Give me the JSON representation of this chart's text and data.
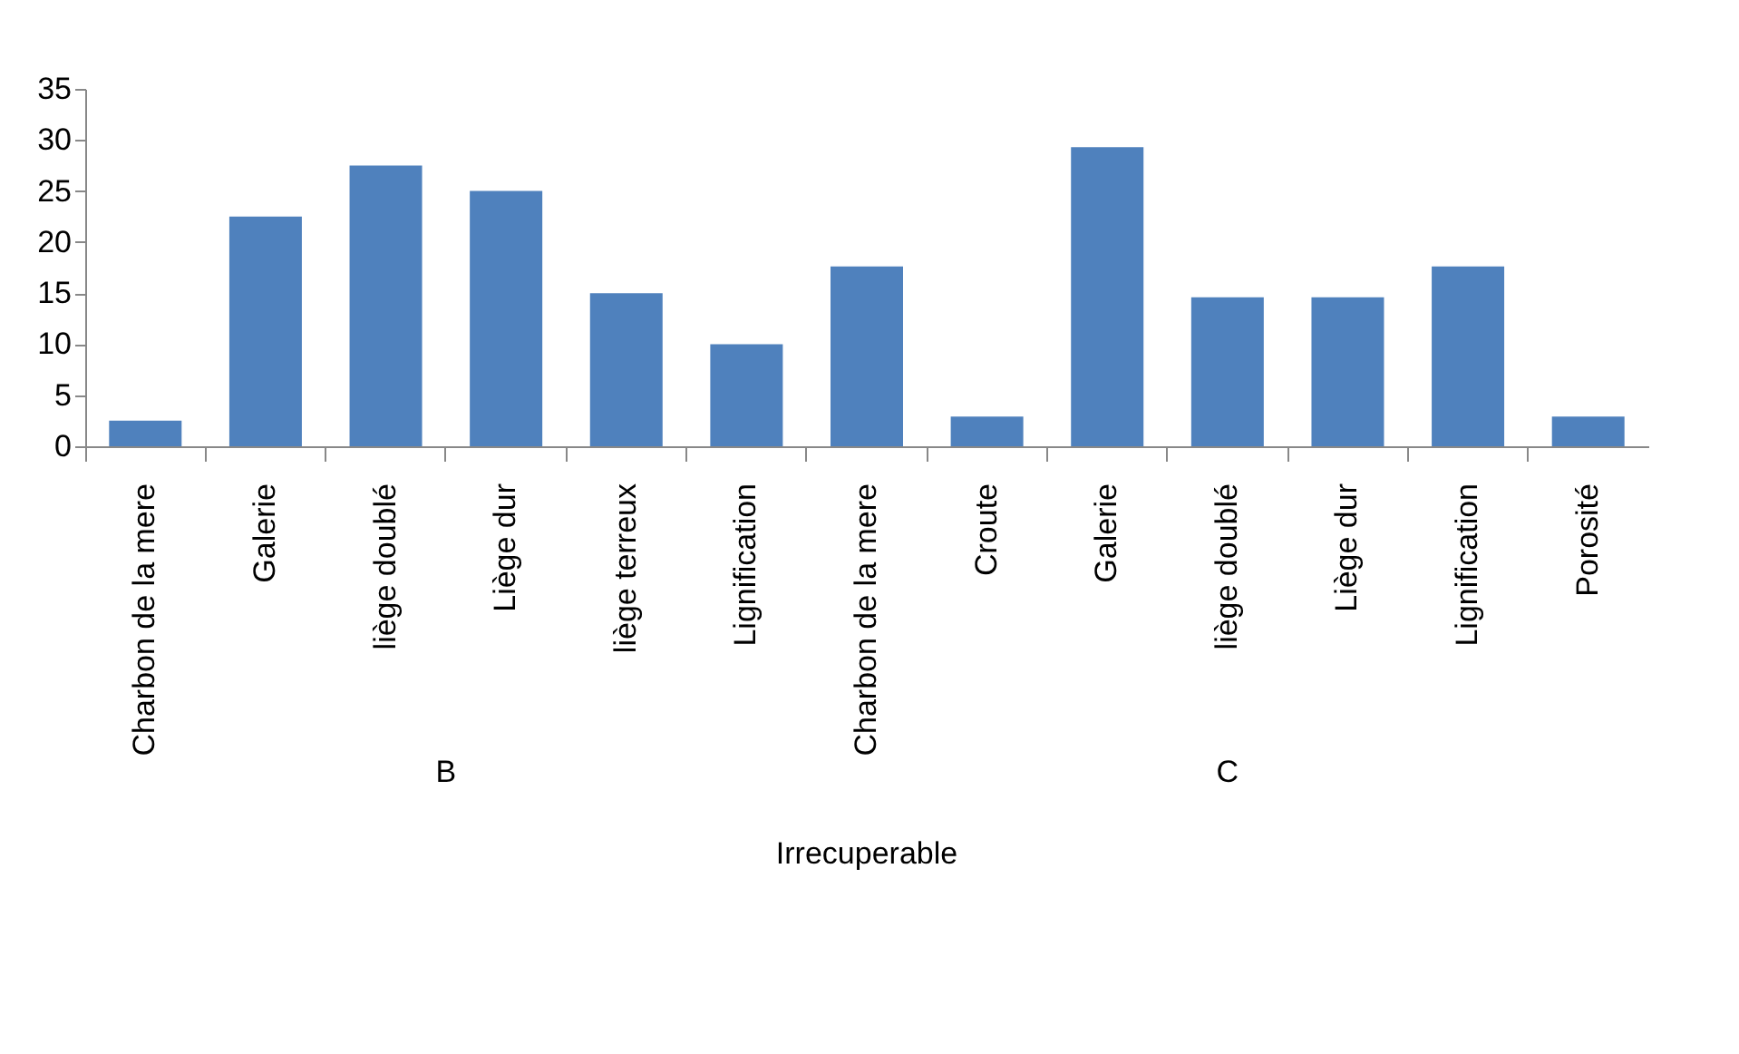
{
  "chart_data": {
    "type": "bar",
    "categories": [
      "Charbon de la mere",
      "Galerie",
      "liège doublé",
      "Liège dur",
      "liège terreux",
      "Lignification",
      "Charbon de la mere",
      "Croute",
      "Galerie",
      "liège doublé",
      "Liège dur",
      "Lignification",
      "Porosité"
    ],
    "values": [
      2.5,
      22.5,
      27.5,
      25,
      15,
      10,
      17.6,
      2.9,
      29.3,
      14.6,
      14.6,
      17.6,
      2.9
    ],
    "color": "#4f81bd",
    "ylim": [
      0,
      35
    ],
    "yticks": [
      0,
      5,
      10,
      15,
      20,
      25,
      30,
      35
    ],
    "annotations": [
      "B",
      "C",
      "Irrecuperable"
    ],
    "grid": false
  }
}
